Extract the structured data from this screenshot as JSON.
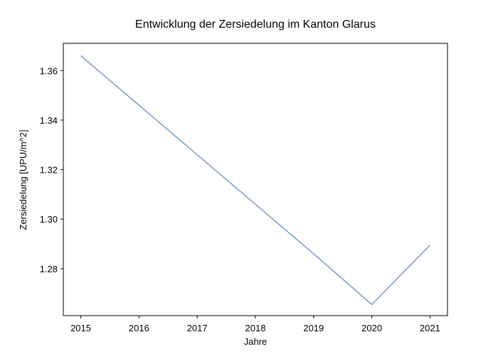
{
  "chart_data": {
    "type": "line",
    "title": "Entwicklung der Zersiedelung im Kanton Glarus",
    "xlabel": "Jahre",
    "ylabel": "Zersiedelung [UPU/m^2]",
    "x": [
      2015,
      2016,
      2017,
      2018,
      2019,
      2020,
      2021
    ],
    "xticks": [
      "2015",
      "2016",
      "2017",
      "2018",
      "2019",
      "2020",
      "2021"
    ],
    "yticks": [
      "1.28",
      "1.30",
      "1.32",
      "1.34",
      "1.36"
    ],
    "xlim": [
      2014.7,
      2021.3
    ],
    "ylim": [
      1.261,
      1.371
    ],
    "grid": false,
    "series": [
      {
        "values": [
          1.366,
          1.346,
          1.326,
          1.306,
          1.286,
          1.2655,
          1.2895
        ],
        "color": "#7f9fcb"
      }
    ]
  }
}
